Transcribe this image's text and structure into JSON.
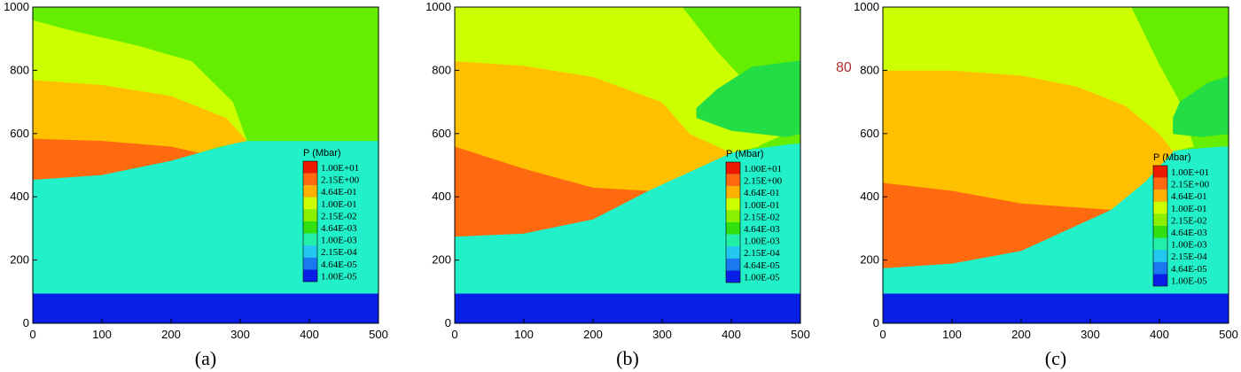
{
  "chart_data": [
    {
      "type": "heatmap",
      "caption": "(a)",
      "xlim": [
        0,
        500
      ],
      "ylim": [
        0,
        1000
      ],
      "xticks": [
        "0",
        "100",
        "200",
        "300",
        "400",
        "500"
      ],
      "yticks": [
        "0",
        "200",
        "400",
        "600",
        "800",
        "1000"
      ],
      "legend_title": "P (Mbar)",
      "legend_levels": [
        "1.00E+01",
        "2.15E+00",
        "4.64E-01",
        "1.00E-01",
        "2.15E-02",
        "4.64E-03",
        "1.00E-03",
        "2.15E-04",
        "4.64E-05",
        "1.00E-05"
      ],
      "legend_placement": "lower-right",
      "regions": [
        {
          "level": "1.00E-05",
          "color": "#0a1fe6",
          "boundary": [
            [
              0,
              0
            ],
            [
              500,
              0
            ],
            [
              500,
              95
            ],
            [
              0,
              95
            ]
          ]
        },
        {
          "level": "1.00E-03",
          "color": "#22f0c8",
          "boundary": [
            [
              0,
              95
            ],
            [
              500,
              95
            ],
            [
              500,
              578
            ],
            [
              310,
              578
            ],
            [
              200,
              515
            ],
            [
              100,
              470
            ],
            [
              0,
              455
            ]
          ]
        },
        {
          "level": "2.15E+00",
          "color": "#ff6a10",
          "boundary": [
            [
              0,
              455
            ],
            [
              100,
              470
            ],
            [
              200,
              515
            ],
            [
              240,
              540
            ],
            [
              200,
              560
            ],
            [
              100,
              578
            ],
            [
              0,
              585
            ]
          ]
        },
        {
          "level": "4.64E-01",
          "color": "#ffc000",
          "boundary": [
            [
              0,
              585
            ],
            [
              100,
              578
            ],
            [
              200,
              560
            ],
            [
              240,
              540
            ],
            [
              270,
              560
            ],
            [
              310,
              578
            ],
            [
              280,
              650
            ],
            [
              200,
              720
            ],
            [
              100,
              755
            ],
            [
              0,
              770
            ]
          ]
        },
        {
          "level": "1.00E-01",
          "color": "#ccff00",
          "boundary": [
            [
              0,
              770
            ],
            [
              100,
              755
            ],
            [
              200,
              720
            ],
            [
              280,
              650
            ],
            [
              310,
              578
            ],
            [
              290,
              700
            ],
            [
              230,
              830
            ],
            [
              150,
              880
            ],
            [
              50,
              930
            ],
            [
              0,
              960
            ]
          ]
        },
        {
          "level": "2.15E-02",
          "color": "#66ee00",
          "boundary": [
            [
              0,
              960
            ],
            [
              50,
              930
            ],
            [
              150,
              880
            ],
            [
              230,
              830
            ],
            [
              290,
              700
            ],
            [
              310,
              578
            ],
            [
              500,
              578
            ],
            [
              500,
              1000
            ],
            [
              0,
              1000
            ]
          ]
        }
      ]
    },
    {
      "type": "heatmap",
      "caption": "(b)",
      "xlim": [
        0,
        500
      ],
      "ylim": [
        0,
        1000
      ],
      "xticks": [
        "0",
        "100",
        "200",
        "300",
        "400",
        "500"
      ],
      "yticks": [
        "0",
        "200",
        "400",
        "600",
        "800",
        "1000"
      ],
      "legend_title": "P (Mbar)",
      "legend_levels": [
        "1.00E+01",
        "2.15E+00",
        "4.64E-01",
        "1.00E-01",
        "2.15E-02",
        "4.64E-03",
        "1.00E-03",
        "2.15E-04",
        "4.64E-05",
        "1.00E-05"
      ],
      "legend_placement": "lower-right",
      "regions": [
        {
          "level": "1.00E-05",
          "color": "#0a1fe6",
          "boundary": [
            [
              0,
              0
            ],
            [
              500,
              0
            ],
            [
              500,
              95
            ],
            [
              0,
              95
            ]
          ]
        },
        {
          "level": "1.00E-03",
          "color": "#22f0c8",
          "boundary": [
            [
              0,
              95
            ],
            [
              500,
              95
            ],
            [
              500,
              570
            ],
            [
              400,
              540
            ],
            [
              300,
              450
            ],
            [
              200,
              330
            ],
            [
              100,
              285
            ],
            [
              0,
              275
            ]
          ]
        },
        {
          "level": "2.15E+00",
          "color": "#ff6a10",
          "boundary": [
            [
              0,
              275
            ],
            [
              100,
              285
            ],
            [
              200,
              330
            ],
            [
              280,
              420
            ],
            [
              200,
              430
            ],
            [
              100,
              490
            ],
            [
              0,
              560
            ]
          ]
        },
        {
          "level": "4.64E-01",
          "color": "#ffc000",
          "boundary": [
            [
              0,
              560
            ],
            [
              100,
              490
            ],
            [
              200,
              430
            ],
            [
              280,
              420
            ],
            [
              330,
              470
            ],
            [
              400,
              540
            ],
            [
              340,
              600
            ],
            [
              300,
              700
            ],
            [
              200,
              780
            ],
            [
              100,
              815
            ],
            [
              0,
              830
            ]
          ]
        },
        {
          "level": "1.00E-01",
          "color": "#ccff00",
          "boundary": [
            [
              0,
              830
            ],
            [
              100,
              815
            ],
            [
              200,
              780
            ],
            [
              300,
              700
            ],
            [
              340,
              600
            ],
            [
              400,
              540
            ],
            [
              440,
              560
            ],
            [
              480,
              600
            ],
            [
              440,
              720
            ],
            [
              380,
              860
            ],
            [
              330,
              1000
            ],
            [
              0,
              1000
            ]
          ]
        },
        {
          "level": "2.15E-02",
          "color": "#66ee00",
          "boundary": [
            [
              330,
              1000
            ],
            [
              380,
              860
            ],
            [
              440,
              720
            ],
            [
              480,
              600
            ],
            [
              440,
              560
            ],
            [
              500,
              570
            ],
            [
              500,
              1000
            ]
          ]
        },
        {
          "level": "4.64E-03",
          "color": "#22dd44",
          "boundary": [
            [
              350,
              650
            ],
            [
              400,
              610
            ],
            [
              480,
              590
            ],
            [
              500,
              600
            ],
            [
              500,
              830
            ],
            [
              430,
              810
            ],
            [
              380,
              740
            ],
            [
              350,
              680
            ]
          ]
        }
      ]
    },
    {
      "type": "heatmap",
      "caption": "(c)",
      "xlim": [
        0,
        500
      ],
      "ylim": [
        0,
        1000
      ],
      "xticks": [
        "0",
        "100",
        "200",
        "300",
        "400",
        "500"
      ],
      "yticks": [
        "0",
        "200",
        "400",
        "600",
        "800",
        "1000"
      ],
      "legend_title": "P (Mbar)",
      "legend_levels": [
        "1.00E+01",
        "2.15E+00",
        "4.64E-01",
        "1.00E-01",
        "2.15E-02",
        "4.64E-03",
        "1.00E-03",
        "2.15E-04",
        "4.64E-05",
        "1.00E-05"
      ],
      "legend_placement": "lower-right",
      "regions": [
        {
          "level": "1.00E-05",
          "color": "#0a1fe6",
          "boundary": [
            [
              0,
              0
            ],
            [
              500,
              0
            ],
            [
              500,
              95
            ],
            [
              0,
              95
            ]
          ]
        },
        {
          "level": "1.00E-03",
          "color": "#22f0c8",
          "boundary": [
            [
              0,
              95
            ],
            [
              500,
              95
            ],
            [
              500,
              560
            ],
            [
              420,
              545
            ],
            [
              380,
              450
            ],
            [
              300,
              330
            ],
            [
              200,
              230
            ],
            [
              100,
              190
            ],
            [
              0,
              175
            ]
          ]
        },
        {
          "level": "2.15E+00",
          "color": "#ff6a10",
          "boundary": [
            [
              0,
              175
            ],
            [
              100,
              190
            ],
            [
              200,
              230
            ],
            [
              300,
              330
            ],
            [
              330,
              360
            ],
            [
              200,
              380
            ],
            [
              100,
              420
            ],
            [
              0,
              445
            ]
          ]
        },
        {
          "level": "4.64E-01",
          "color": "#ffc000",
          "boundary": [
            [
              0,
              445
            ],
            [
              100,
              420
            ],
            [
              200,
              380
            ],
            [
              330,
              360
            ],
            [
              380,
              450
            ],
            [
              420,
              545
            ],
            [
              400,
              600
            ],
            [
              350,
              690
            ],
            [
              280,
              750
            ],
            [
              200,
              785
            ],
            [
              100,
              800
            ],
            [
              0,
              800
            ]
          ]
        },
        {
          "level": "1.00E-01",
          "color": "#ccff00",
          "boundary": [
            [
              0,
              800
            ],
            [
              100,
              800
            ],
            [
              200,
              785
            ],
            [
              280,
              750
            ],
            [
              350,
              690
            ],
            [
              400,
              600
            ],
            [
              420,
              545
            ],
            [
              450,
              560
            ],
            [
              430,
              700
            ],
            [
              400,
              820
            ],
            [
              360,
              1000
            ],
            [
              0,
              1000
            ]
          ]
        },
        {
          "level": "2.15E-02",
          "color": "#66ee00",
          "boundary": [
            [
              360,
              1000
            ],
            [
              400,
              820
            ],
            [
              430,
              700
            ],
            [
              450,
              560
            ],
            [
              500,
              560
            ],
            [
              500,
              1000
            ]
          ]
        },
        {
          "level": "4.64E-03",
          "color": "#22dd44",
          "boundary": [
            [
              420,
              600
            ],
            [
              460,
              590
            ],
            [
              500,
              600
            ],
            [
              500,
              780
            ],
            [
              470,
              760
            ],
            [
              430,
              700
            ],
            [
              420,
              650
            ]
          ]
        }
      ]
    }
  ],
  "stray_text": "80"
}
